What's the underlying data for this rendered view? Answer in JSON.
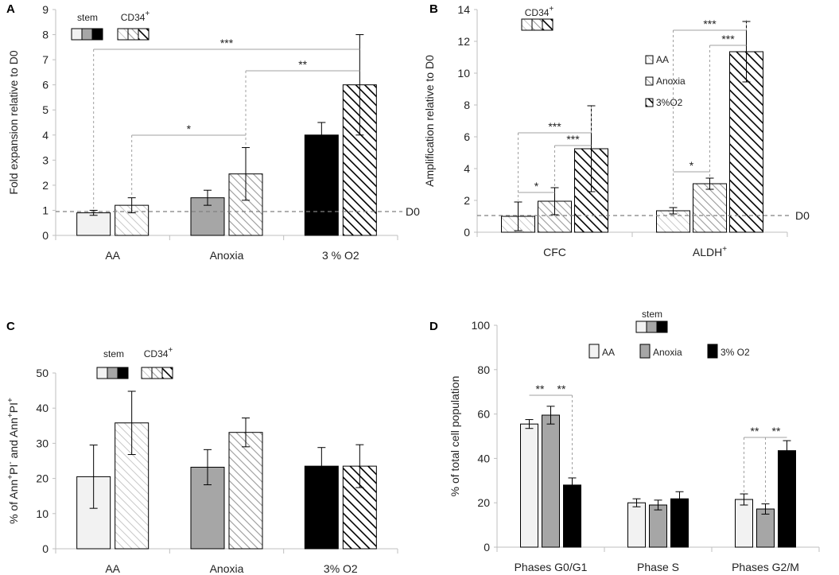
{
  "chart_data": [
    {
      "panel": "A",
      "type": "bar",
      "ylabel": "Fold expansion relative to  D0",
      "ylim": [
        0,
        9
      ],
      "yticks": [
        "0",
        "1",
        "2",
        "3",
        "4",
        "5",
        "6",
        "7",
        "8",
        "9"
      ],
      "categories": [
        "AA",
        "Anoxia",
        "3 % O2"
      ],
      "series": [
        {
          "name": "stem",
          "values": [
            0.9,
            1.5,
            4.0
          ],
          "errors": [
            0.1,
            0.3,
            0.5
          ]
        },
        {
          "name": "CD34+",
          "values": [
            1.2,
            2.45,
            6.0
          ],
          "errors": [
            0.3,
            1.05,
            2.0
          ]
        }
      ],
      "reference_line": {
        "label": "D0",
        "value": 0.95
      },
      "legend": {
        "stem_label": "stem",
        "cd34_base": "CD34",
        "cd34_sup": "+"
      },
      "annotations": [
        "***",
        "**",
        "*"
      ]
    },
    {
      "panel": "B",
      "type": "bar",
      "ylabel": "Amplification relative to D0",
      "ylim": [
        0,
        14
      ],
      "yticks": [
        "0",
        "2",
        "4",
        "6",
        "8",
        "10",
        "12",
        "14"
      ],
      "categories": [
        "CFC",
        "ALDH+"
      ],
      "category_labels": [
        {
          "base": "CFC",
          "sup": ""
        },
        {
          "base": "ALDH",
          "sup": "+"
        }
      ],
      "series": [
        {
          "name": "AA",
          "values": [
            1.0,
            1.35
          ],
          "errors": [
            0.9,
            0.2
          ]
        },
        {
          "name": "Anoxia",
          "values": [
            1.95,
            3.05
          ],
          "errors": [
            0.85,
            0.35
          ]
        },
        {
          "name": "3%O2",
          "values": [
            5.25,
            11.35
          ],
          "errors": [
            2.7,
            1.9
          ]
        }
      ],
      "reference_line": {
        "label": "D0",
        "value": 1.05
      },
      "legend": {
        "cd34_base": "CD34",
        "cd34_sup": "+",
        "items": [
          "AA",
          "Anoxia",
          "3%O2"
        ]
      },
      "annotations": [
        "***",
        "***",
        "*",
        "***",
        "***",
        "*"
      ]
    },
    {
      "panel": "C",
      "type": "bar",
      "ylabel_parts": [
        "% of  Ann",
        "+",
        "PI",
        "-",
        " and Ann",
        "+",
        "PI",
        "+"
      ],
      "ylim": [
        0,
        50
      ],
      "yticks": [
        "0",
        "10",
        "20",
        "30",
        "40",
        "50"
      ],
      "categories": [
        "AA",
        "Anoxia",
        "3% O2"
      ],
      "series": [
        {
          "name": "stem",
          "values": [
            20.5,
            23.2,
            23.5
          ],
          "errors": [
            9.0,
            5.0,
            5.3
          ]
        },
        {
          "name": "CD34+",
          "values": [
            35.8,
            33.1,
            23.5
          ],
          "errors": [
            9.0,
            4.1,
            6.1
          ]
        }
      ],
      "legend": {
        "stem_label": "stem",
        "cd34_base": "CD34",
        "cd34_sup": "+"
      }
    },
    {
      "panel": "D",
      "type": "bar",
      "ylabel": "% of total cell population",
      "ylim": [
        0,
        100
      ],
      "yticks": [
        "0",
        "20",
        "40",
        "60",
        "80",
        "100"
      ],
      "categories": [
        "Phases G0/G1",
        "Phase S",
        "Phases G2/M"
      ],
      "series": [
        {
          "name": "AA",
          "values": [
            55.5,
            20.0,
            21.5
          ],
          "errors": [
            2.0,
            1.8,
            2.5
          ]
        },
        {
          "name": "Anoxia",
          "values": [
            59.5,
            19.0,
            17.2
          ],
          "errors": [
            4.0,
            2.2,
            2.3
          ]
        },
        {
          "name": "3% O2",
          "values": [
            28.0,
            21.8,
            43.5
          ],
          "errors": [
            3.2,
            3.2,
            4.5
          ]
        }
      ],
      "legend": {
        "stem_label": "stem",
        "items": [
          "AA",
          "Anoxia",
          "3% O2"
        ]
      },
      "annotations": [
        "**",
        "**",
        "**",
        "**"
      ]
    }
  ],
  "colors": {
    "aa": "#f2f2f2",
    "anoxia": "#a6a6a6",
    "o2": "#000000",
    "axis": "#bfbfbf",
    "text": "#222222"
  }
}
